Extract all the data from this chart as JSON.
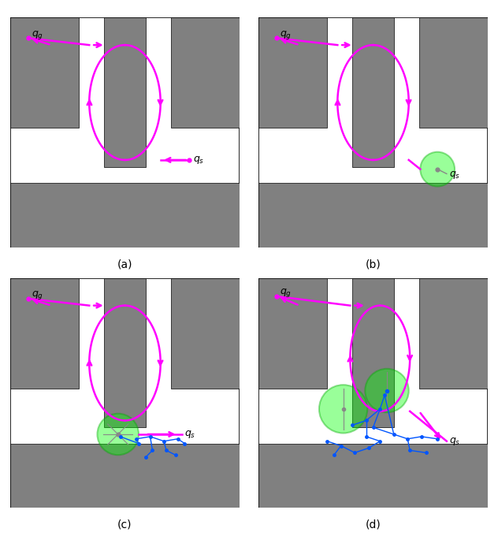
{
  "fig_width": 6.32,
  "fig_height": 6.8,
  "bg_color": "#ffffff",
  "obstacle_color": "#808080",
  "path_color": "#ff00ff",
  "tree_color": "#0055ff",
  "green_fill": "#00ff00",
  "green_alpha": 0.4,
  "green_edge": "#00aa00",
  "gray_color": "#888888",
  "panels": [
    "(a)",
    "(b)",
    "(c)",
    "(d)"
  ],
  "xlim": [
    0,
    10
  ],
  "ylim": [
    0,
    10
  ]
}
